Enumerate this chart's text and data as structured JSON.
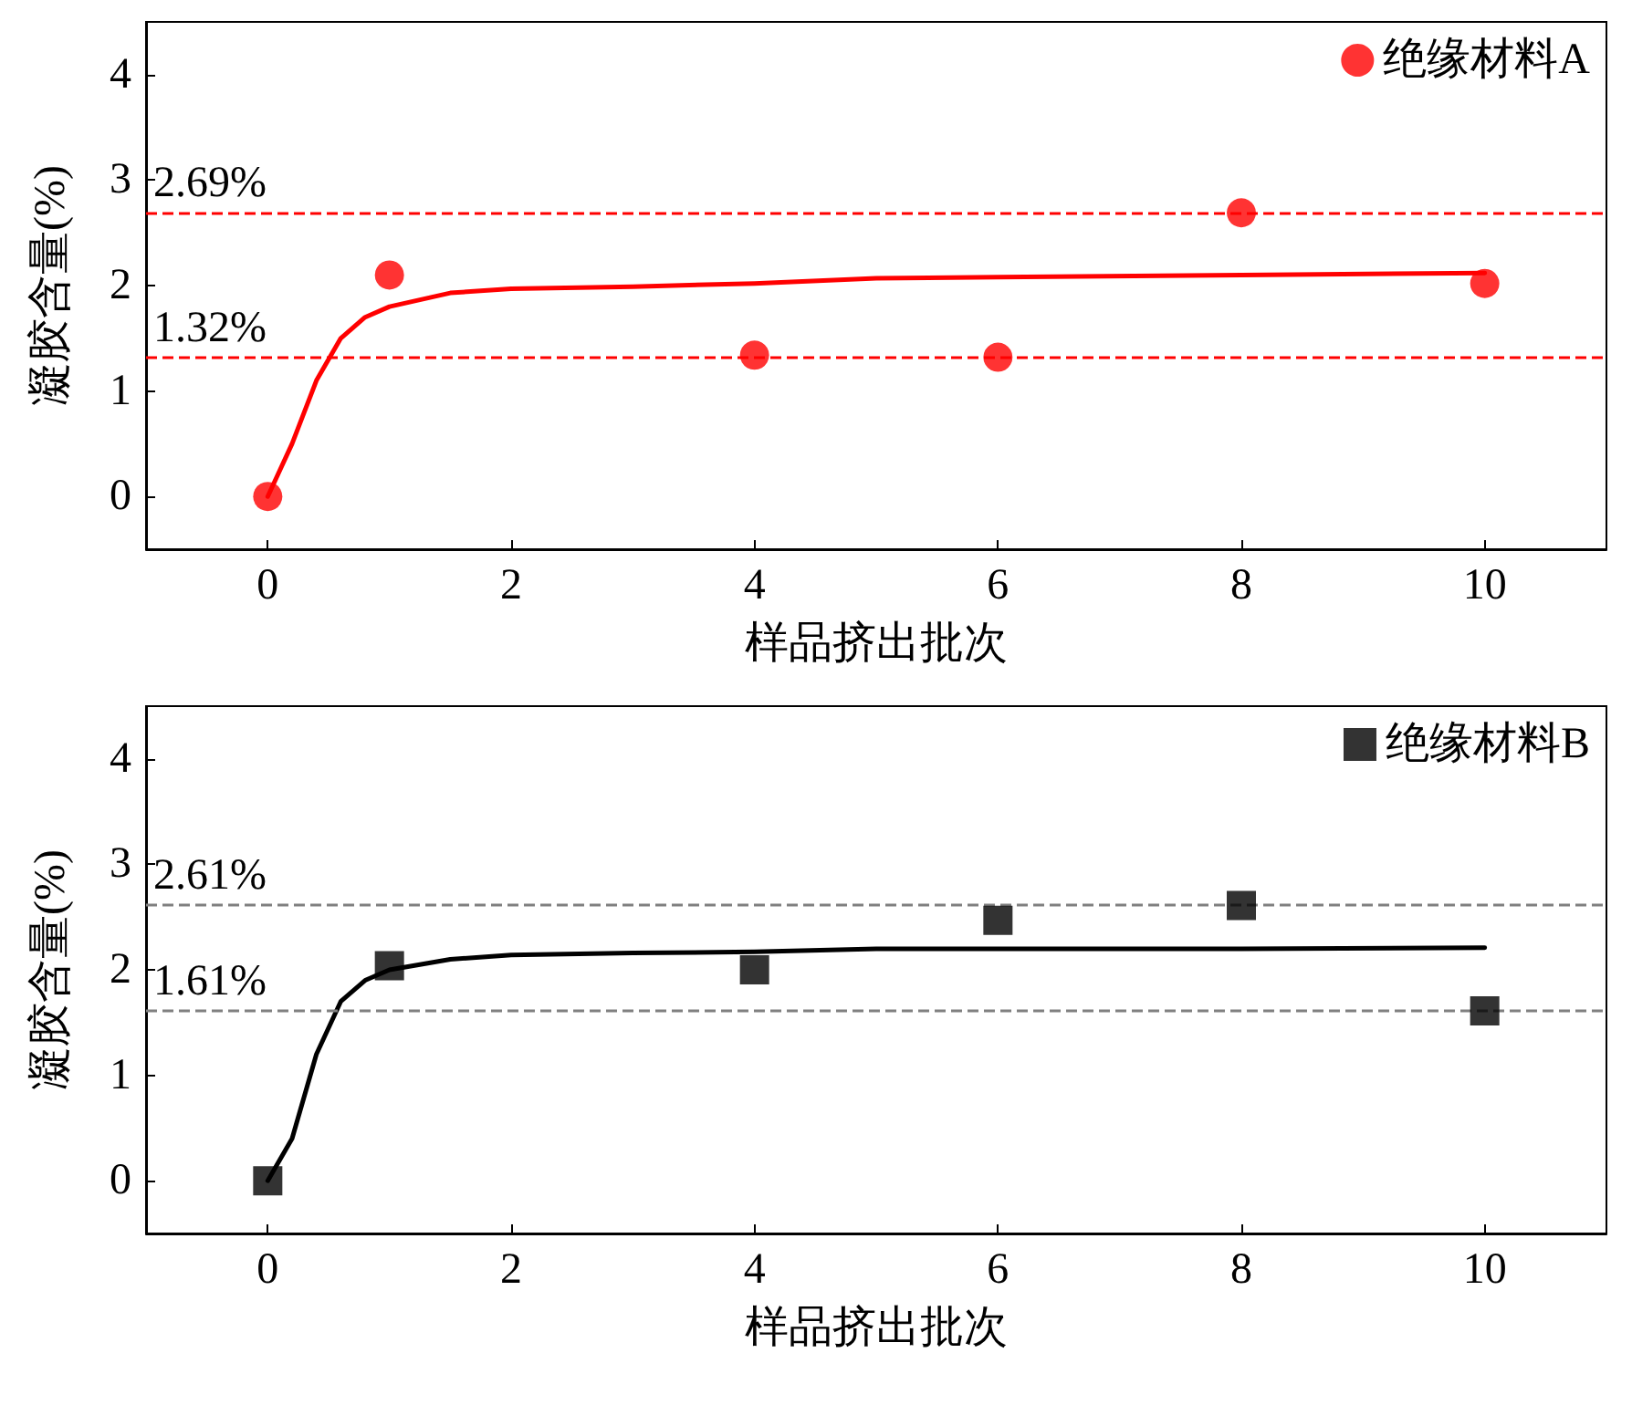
{
  "chart_data": [
    {
      "type": "scatter",
      "xlabel": "样品挤出批次",
      "ylabel": "凝胶含量(%)",
      "xlim": [
        -1,
        11
      ],
      "ylim": [
        -0.5,
        4.5
      ],
      "xticks": [
        0,
        2,
        4,
        6,
        8,
        10
      ],
      "yticks": [
        0,
        1,
        2,
        3,
        4
      ],
      "grid": false,
      "legend": "top right",
      "series": [
        {
          "name": "绝缘材料A",
          "color": "#ff0000",
          "marker": "circle",
          "x": [
            0,
            1,
            4,
            6,
            8,
            10
          ],
          "values": [
            0,
            2.1,
            1.34,
            1.32,
            2.69,
            2.02
          ]
        },
        {
          "type": "line",
          "color": "#ff0000",
          "marker": "none",
          "line_style": "solid",
          "x": [
            0,
            0.2,
            0.4,
            0.6,
            0.8,
            1,
            1.5,
            2,
            3,
            4,
            5,
            6,
            8,
            10
          ],
          "values": [
            0,
            0.5,
            1.1,
            1.5,
            1.7,
            1.8,
            1.93,
            1.97,
            1.99,
            2.02,
            2.07,
            2.08,
            2.1,
            2.12
          ]
        }
      ],
      "ref_lines": [
        {
          "axis": "y",
          "value": 2.69,
          "label": "2.69%",
          "color": "#ff0000",
          "line_style": "dashed"
        },
        {
          "axis": "y",
          "value": 1.32,
          "label": "1.32%",
          "color": "#ff0000",
          "line_style": "dashed"
        }
      ]
    },
    {
      "type": "scatter",
      "xlabel": "样品挤出批次",
      "ylabel": "凝胶含量(%)",
      "xlim": [
        -1,
        11
      ],
      "ylim": [
        -0.5,
        4.5
      ],
      "xticks": [
        0,
        2,
        4,
        6,
        8,
        10
      ],
      "yticks": [
        0,
        1,
        2,
        3,
        4
      ],
      "grid": false,
      "legend": "top right",
      "series": [
        {
          "name": "绝缘材料B",
          "color": "#000000",
          "marker": "square",
          "x": [
            0,
            1,
            4,
            6,
            8,
            10
          ],
          "values": [
            0,
            2.04,
            2.0,
            2.47,
            2.61,
            1.61
          ]
        },
        {
          "type": "line",
          "color": "#000000",
          "marker": "none",
          "line_style": "solid",
          "x": [
            0,
            0.2,
            0.4,
            0.6,
            0.8,
            1,
            1.5,
            2,
            3,
            4,
            5,
            6,
            8,
            10
          ],
          "values": [
            0,
            0.4,
            1.2,
            1.7,
            1.9,
            2.0,
            2.1,
            2.14,
            2.16,
            2.17,
            2.2,
            2.2,
            2.2,
            2.21
          ]
        }
      ],
      "ref_lines": [
        {
          "axis": "y",
          "value": 2.61,
          "label": "2.61%",
          "color": "#808080",
          "line_style": "dashed"
        },
        {
          "axis": "y",
          "value": 1.61,
          "label": "1.61%",
          "color": "#808080",
          "line_style": "dashed"
        }
      ]
    }
  ]
}
